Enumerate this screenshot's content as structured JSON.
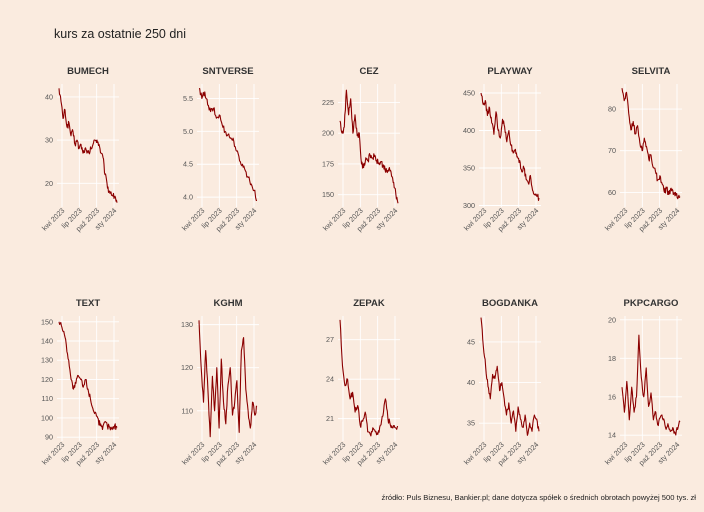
{
  "title": "kurs za ostatnie 250 dni",
  "caption": "źródło: Puls Biznesu, Bankier.pl; dane dotycza spółek o średnich obrotach powyżej 500 tys. zł",
  "colors": {
    "background": "#faebdf",
    "line": "#8b0000",
    "grid": "#ffffff"
  },
  "chart_data": [
    {
      "type": "line",
      "title": "BUMECH",
      "x_ticks": [
        "kwi 2023",
        "lip 2023",
        "paź 2023",
        "sty 2024"
      ],
      "y_ticks": [
        20,
        30,
        40
      ],
      "ylim": [
        14.5,
        43
      ],
      "values": [
        42,
        39,
        35,
        37,
        33,
        34,
        31,
        32,
        29,
        30,
        28,
        29,
        27,
        28,
        27,
        27,
        28,
        29,
        30,
        30,
        29,
        27,
        26,
        22,
        20,
        18,
        18,
        17,
        17,
        15.5
      ]
    },
    {
      "type": "line",
      "title": "SNTVERSE",
      "x_ticks": [
        "kwi 2023",
        "lip 2023",
        "paź 2023",
        "sty 2024"
      ],
      "y_ticks": [
        4.0,
        4.5,
        5.0,
        5.5
      ],
      "ylim": [
        3.85,
        5.72
      ],
      "values": [
        5.65,
        5.5,
        5.6,
        5.4,
        5.3,
        5.35,
        5.2,
        5.25,
        5.1,
        5.0,
        4.95,
        4.9,
        4.85,
        4.7,
        4.55,
        4.5,
        4.4,
        4.3,
        4.2,
        4.1,
        3.95
      ]
    },
    {
      "type": "line",
      "title": "CEZ",
      "x_ticks": [
        "kwi 2023",
        "lip 2023",
        "paź 2023",
        "sty 2024"
      ],
      "y_ticks": [
        150,
        175,
        200,
        225
      ],
      "ylim": [
        140,
        240
      ],
      "values": [
        210,
        200,
        205,
        235,
        215,
        228,
        200,
        215,
        198,
        200,
        175,
        172,
        180,
        178,
        182,
        180,
        181,
        178,
        175,
        177,
        174,
        170,
        168,
        172,
        165,
        160,
        150,
        143
      ]
    },
    {
      "type": "line",
      "title": "PLAYWAY",
      "x_ticks": [
        "kwi 2023",
        "lip 2023",
        "paź 2023",
        "sty 2024"
      ],
      "y_ticks": [
        300,
        350,
        400,
        450
      ],
      "ylim": [
        298,
        462
      ],
      "values": [
        450,
        435,
        440,
        420,
        430,
        410,
        395,
        425,
        400,
        390,
        415,
        405,
        385,
        400,
        380,
        370,
        375,
        365,
        360,
        345,
        350,
        335,
        330,
        340,
        320,
        315,
        312,
        310
      ]
    },
    {
      "type": "line",
      "title": "SELVITA",
      "x_ticks": [
        "kwi 2023",
        "lip 2023",
        "paź 2023",
        "sty 2024"
      ],
      "y_ticks": [
        60,
        70,
        80
      ],
      "ylim": [
        56.5,
        86
      ],
      "values": [
        85,
        82,
        84,
        79,
        75,
        77,
        74,
        76,
        72,
        70,
        73,
        71,
        68,
        69,
        66,
        65,
        63,
        64,
        62,
        60,
        61,
        59.5,
        61,
        59.5,
        60,
        58.5,
        59
      ]
    },
    {
      "type": "line",
      "title": "TEXT",
      "x_ticks": [
        "kwi 2023",
        "lip 2023",
        "paź 2023",
        "sty 2024"
      ],
      "y_ticks": [
        90,
        100,
        110,
        120,
        130,
        140,
        150
      ],
      "ylim": [
        88,
        153
      ],
      "values": [
        150,
        148,
        145,
        138,
        130,
        120,
        115,
        118,
        122,
        120,
        116,
        120,
        115,
        110,
        105,
        103,
        100,
        96,
        94,
        98,
        96,
        95,
        94,
        96,
        95
      ]
    },
    {
      "type": "line",
      "title": "KGHM",
      "x_ticks": [
        "kwi 2023",
        "lip 2023",
        "paź 2023",
        "sty 2024"
      ],
      "y_ticks": [
        110,
        120,
        130
      ],
      "ylim": [
        103,
        132
      ],
      "values": [
        131,
        120,
        112,
        124,
        115,
        104,
        118,
        110,
        120,
        106,
        122,
        112,
        107,
        116,
        120,
        109,
        112,
        117,
        105,
        124,
        127,
        115,
        110,
        106,
        112,
        109,
        111
      ]
    },
    {
      "type": "line",
      "title": "ZEPAK",
      "x_ticks": [
        "kwi 2023",
        "lip 2023",
        "paź 2023",
        "sty 2024"
      ],
      "y_ticks": [
        21,
        24,
        27
      ],
      "ylim": [
        19.3,
        28.8
      ],
      "values": [
        28.5,
        25,
        23.5,
        24,
        22.5,
        23,
        21.5,
        22,
        20.5,
        20.8,
        21.5,
        20,
        19.8,
        20.3,
        20,
        19.8,
        20.5,
        21.2,
        22.5,
        21,
        20.5,
        20.3,
        20.3,
        20.4
      ]
    },
    {
      "type": "line",
      "title": "BOGDANKA",
      "x_ticks": [
        "kwi 2023",
        "lip 2023",
        "paź 2023",
        "sty 2024"
      ],
      "y_ticks": [
        35,
        40,
        45
      ],
      "ylim": [
        32.8,
        48.2
      ],
      "values": [
        48,
        44.5,
        42,
        39.5,
        38,
        41,
        40.5,
        42,
        39,
        40,
        38,
        36,
        37.5,
        35,
        36.5,
        34,
        37,
        35.5,
        34.5,
        36,
        33.5,
        35,
        34,
        36,
        35.5,
        34
      ]
    },
    {
      "type": "line",
      "title": "PKPCARGO",
      "x_ticks": [
        "kwi 2023",
        "lip 2023",
        "paź 2023",
        "sty 2024"
      ],
      "y_ticks": [
        14,
        16,
        18,
        20
      ],
      "ylim": [
        13.7,
        20.2
      ],
      "values": [
        16.5,
        15.2,
        16.8,
        14.8,
        16.5,
        15.2,
        16,
        19.2,
        17,
        16,
        17.5,
        15.5,
        16.2,
        14.8,
        15.2,
        14.5,
        15,
        14.8,
        14.4,
        14.6,
        14.2,
        14.4,
        14.1,
        14.3,
        14.7
      ]
    }
  ]
}
